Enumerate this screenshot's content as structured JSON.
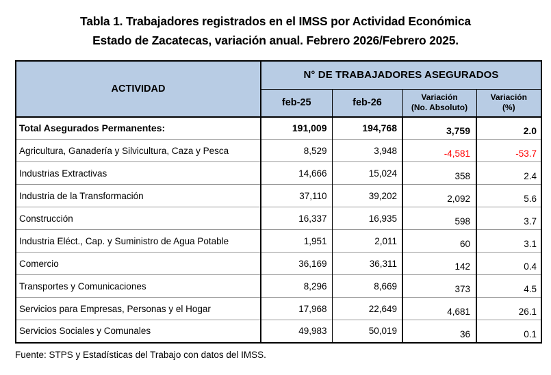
{
  "title": {
    "line1": "Tabla 1. Trabajadores registrados en el IMSS por Actividad Económica",
    "line2": "Estado de Zacatecas, variación anual. Febrero 2026/Febrero 2025."
  },
  "table": {
    "activity_header": "ACTIVIDAD",
    "group_header": "N° DE TRABAJADORES ASEGURADOS",
    "subheaders": [
      {
        "line1": "feb-25",
        "line2": ""
      },
      {
        "line1": "feb-26",
        "line2": ""
      },
      {
        "line1": "Variación",
        "line2": "(No. Absoluto)"
      },
      {
        "line1": "Variación",
        "line2": "(%)"
      }
    ],
    "rows": [
      {
        "activity": "Total Asegurados Permanentes:",
        "feb25": "191,009",
        "feb26": "194,768",
        "var_abs": "3,759",
        "var_pct": "2.0",
        "bold": true
      },
      {
        "activity": "Agricultura, Ganadería y Silvicultura, Caza y Pesca",
        "feb25": "8,529",
        "feb26": "3,948",
        "var_abs": "-4,581",
        "var_pct": "-53.7",
        "bold": false
      },
      {
        "activity": "Industrias Extractivas",
        "feb25": "14,666",
        "feb26": "15,024",
        "var_abs": "358",
        "var_pct": "2.4",
        "bold": false
      },
      {
        "activity": "Industria de la Transformación",
        "feb25": "37,110",
        "feb26": "39,202",
        "var_abs": "2,092",
        "var_pct": "5.6",
        "bold": false
      },
      {
        "activity": "Construcción",
        "feb25": "16,337",
        "feb26": "16,935",
        "var_abs": "598",
        "var_pct": "3.7",
        "bold": false
      },
      {
        "activity": "Industria Eléct., Cap. y Suministro de Agua Potable",
        "feb25": "1,951",
        "feb26": "2,011",
        "var_abs": "60",
        "var_pct": "3.1",
        "bold": false
      },
      {
        "activity": "Comercio",
        "feb25": "36,169",
        "feb26": "36,311",
        "var_abs": "142",
        "var_pct": "0.4",
        "bold": false
      },
      {
        "activity": "Transportes y Comunicaciones",
        "feb25": "8,296",
        "feb26": "8,669",
        "var_abs": "373",
        "var_pct": "4.5",
        "bold": false
      },
      {
        "activity": "Servicios para Empresas, Personas y el Hogar",
        "feb25": "17,968",
        "feb26": "22,649",
        "var_abs": "4,681",
        "var_pct": "26.1",
        "bold": false
      },
      {
        "activity": "Servicios Sociales y Comunales",
        "feb25": "49,983",
        "feb26": "50,019",
        "var_abs": "36",
        "var_pct": "0.1",
        "bold": false
      }
    ]
  },
  "source": "Fuente: STPS y Estadísticas del Trabajo con datos del IMSS.",
  "colors": {
    "header_bg": "#B8CCE4",
    "negative": "#FF0000",
    "row_divider": "#969696",
    "border": "#000000"
  }
}
